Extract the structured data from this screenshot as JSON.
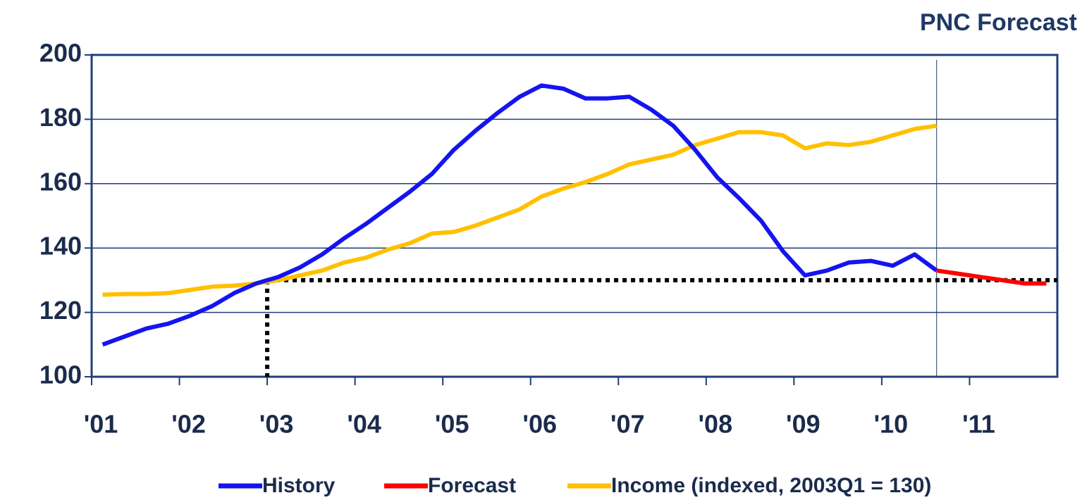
{
  "chart_data": {
    "type": "line",
    "title": "PNC Forecast",
    "xlim": [
      2001,
      2012
    ],
    "xticks": [
      {
        "value": 2001,
        "label": "'01"
      },
      {
        "value": 2002,
        "label": "'02"
      },
      {
        "value": 2003,
        "label": "'03"
      },
      {
        "value": 2004,
        "label": "'04"
      },
      {
        "value": 2005,
        "label": "'05"
      },
      {
        "value": 2006,
        "label": "'06"
      },
      {
        "value": 2007,
        "label": "'07"
      },
      {
        "value": 2008,
        "label": "'08"
      },
      {
        "value": 2009,
        "label": "'09"
      },
      {
        "value": 2010,
        "label": "'10"
      },
      {
        "value": 2011,
        "label": "'11"
      }
    ],
    "ylim": [
      100,
      200
    ],
    "yticks": [
      100,
      120,
      140,
      160,
      180,
      200
    ],
    "grid": true,
    "legend": "bottom",
    "reference": {
      "x": 2003,
      "y": 130
    },
    "series": [
      {
        "name": "History",
        "color": "#1414f0",
        "x": [
          2001.125,
          2001.375,
          2001.625,
          2001.875,
          2002.125,
          2002.375,
          2002.625,
          2002.875,
          2003.125,
          2003.375,
          2003.625,
          2003.875,
          2004.125,
          2004.375,
          2004.625,
          2004.875,
          2005.125,
          2005.375,
          2005.625,
          2005.875,
          2006.125,
          2006.375,
          2006.625,
          2006.875,
          2007.125,
          2007.375,
          2007.625,
          2007.875,
          2008.125,
          2008.375,
          2008.625,
          2008.875,
          2009.125,
          2009.375,
          2009.625,
          2009.875,
          2010.125,
          2010.375,
          2010.625
        ],
        "values": [
          110,
          112.5,
          115,
          116.5,
          119,
          122,
          126,
          129,
          131,
          134,
          138,
          143,
          147.5,
          152.5,
          157.5,
          163,
          170.5,
          176.5,
          182,
          187,
          190.5,
          189.5,
          186.5,
          186.5,
          187,
          183,
          178,
          170.5,
          162,
          155.5,
          148.5,
          139,
          131.5,
          133,
          135.5,
          136,
          134.5,
          138,
          133
        ]
      },
      {
        "name": "Forecast",
        "color": "#ff0000",
        "x": [
          2010.625,
          2010.875,
          2011.125,
          2011.375,
          2011.625,
          2011.875
        ],
        "values": [
          133,
          132,
          131,
          130,
          129,
          129
        ]
      },
      {
        "name": "Income (indexed, 2003Q1 = 130)",
        "color": "#ffc000",
        "x": [
          2001.125,
          2001.375,
          2001.625,
          2001.875,
          2002.125,
          2002.375,
          2002.625,
          2002.875,
          2003.125,
          2003.375,
          2003.625,
          2003.875,
          2004.125,
          2004.375,
          2004.625,
          2004.875,
          2005.125,
          2005.375,
          2005.625,
          2005.875,
          2006.125,
          2006.375,
          2006.625,
          2006.875,
          2007.125,
          2007.375,
          2007.625,
          2007.875,
          2008.125,
          2008.375,
          2008.625,
          2008.875,
          2009.125,
          2009.375,
          2009.625,
          2009.875,
          2010.125,
          2010.375,
          2010.625
        ],
        "values": [
          125.5,
          125.7,
          125.7,
          126,
          127,
          128,
          128.3,
          129,
          130,
          131.5,
          133,
          135.5,
          137,
          139.5,
          141.5,
          144.5,
          145,
          147,
          149.5,
          152,
          156,
          158.5,
          160.5,
          163,
          166,
          167.5,
          169,
          172,
          174,
          176,
          176,
          175,
          171,
          172.5,
          172,
          173,
          175,
          177,
          178
        ]
      }
    ]
  }
}
